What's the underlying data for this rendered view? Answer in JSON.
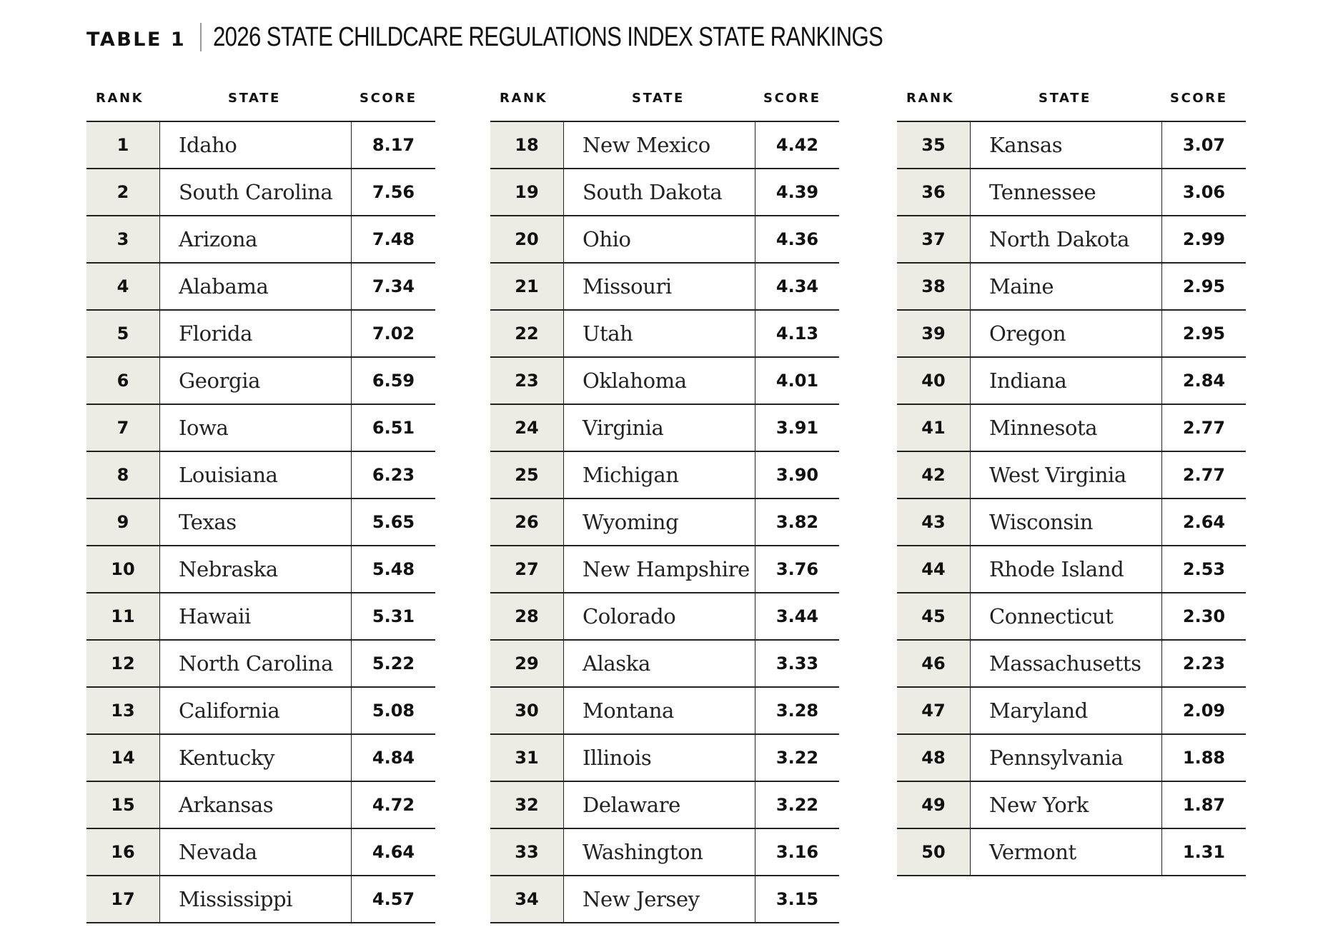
{
  "title": {
    "label": "TABLE 1",
    "text": "2026 STATE  CHILDCARE REGULATIONS INDEX STATE RANKINGS"
  },
  "headers": {
    "rank": "RANK",
    "state": "STATE",
    "score": "SCORE"
  },
  "columns": [
    [
      {
        "rank": "1",
        "state": "Idaho",
        "score": "8.17"
      },
      {
        "rank": "2",
        "state": "South Carolina",
        "score": "7.56"
      },
      {
        "rank": "3",
        "state": "Arizona",
        "score": "7.48"
      },
      {
        "rank": "4",
        "state": "Alabama",
        "score": "7.34"
      },
      {
        "rank": "5",
        "state": "Florida",
        "score": "7.02"
      },
      {
        "rank": "6",
        "state": "Georgia",
        "score": "6.59"
      },
      {
        "rank": "7",
        "state": "Iowa",
        "score": "6.51"
      },
      {
        "rank": "8",
        "state": "Louisiana",
        "score": "6.23"
      },
      {
        "rank": "9",
        "state": "Texas",
        "score": "5.65"
      },
      {
        "rank": "10",
        "state": "Nebraska",
        "score": "5.48"
      },
      {
        "rank": "11",
        "state": "Hawaii",
        "score": "5.31"
      },
      {
        "rank": "12",
        "state": "North Carolina",
        "score": "5.22"
      },
      {
        "rank": "13",
        "state": "California",
        "score": "5.08"
      },
      {
        "rank": "14",
        "state": "Kentucky",
        "score": "4.84"
      },
      {
        "rank": "15",
        "state": "Arkansas",
        "score": "4.72"
      },
      {
        "rank": "16",
        "state": "Nevada",
        "score": "4.64"
      },
      {
        "rank": "17",
        "state": "Mississippi",
        "score": "4.57"
      }
    ],
    [
      {
        "rank": "18",
        "state": "New Mexico",
        "score": "4.42"
      },
      {
        "rank": "19",
        "state": "South Dakota",
        "score": "4.39"
      },
      {
        "rank": "20",
        "state": "Ohio",
        "score": "4.36"
      },
      {
        "rank": "21",
        "state": "Missouri",
        "score": "4.34"
      },
      {
        "rank": "22",
        "state": "Utah",
        "score": "4.13"
      },
      {
        "rank": "23",
        "state": "Oklahoma",
        "score": "4.01"
      },
      {
        "rank": "24",
        "state": "Virginia",
        "score": "3.91"
      },
      {
        "rank": "25",
        "state": "Michigan",
        "score": "3.90"
      },
      {
        "rank": "26",
        "state": "Wyoming",
        "score": "3.82"
      },
      {
        "rank": "27",
        "state": "New Hampshire",
        "score": "3.76"
      },
      {
        "rank": "28",
        "state": "Colorado",
        "score": "3.44"
      },
      {
        "rank": "29",
        "state": "Alaska",
        "score": "3.33"
      },
      {
        "rank": "30",
        "state": "Montana",
        "score": "3.28"
      },
      {
        "rank": "31",
        "state": "Illinois",
        "score": "3.22"
      },
      {
        "rank": "32",
        "state": "Delaware",
        "score": "3.22"
      },
      {
        "rank": "33",
        "state": "Washington",
        "score": "3.16"
      },
      {
        "rank": "34",
        "state": "New Jersey",
        "score": "3.15"
      }
    ],
    [
      {
        "rank": "35",
        "state": "Kansas",
        "score": "3.07"
      },
      {
        "rank": "36",
        "state": "Tennessee",
        "score": "3.06"
      },
      {
        "rank": "37",
        "state": "North Dakota",
        "score": "2.99"
      },
      {
        "rank": "38",
        "state": "Maine",
        "score": "2.95"
      },
      {
        "rank": "39",
        "state": "Oregon",
        "score": "2.95"
      },
      {
        "rank": "40",
        "state": "Indiana",
        "score": "2.84"
      },
      {
        "rank": "41",
        "state": "Minnesota",
        "score": "2.77"
      },
      {
        "rank": "42",
        "state": "West Virginia",
        "score": "2.77"
      },
      {
        "rank": "43",
        "state": "Wisconsin",
        "score": "2.64"
      },
      {
        "rank": "44",
        "state": "Rhode Island",
        "score": "2.53"
      },
      {
        "rank": "45",
        "state": "Connecticut",
        "score": "2.30"
      },
      {
        "rank": "46",
        "state": "Massachusetts",
        "score": "2.23"
      },
      {
        "rank": "47",
        "state": "Maryland",
        "score": "2.09"
      },
      {
        "rank": "48",
        "state": "Pennsylvania",
        "score": "1.88"
      },
      {
        "rank": "49",
        "state": "New York",
        "score": "1.87"
      },
      {
        "rank": "50",
        "state": "Vermont",
        "score": "1.31"
      }
    ]
  ]
}
